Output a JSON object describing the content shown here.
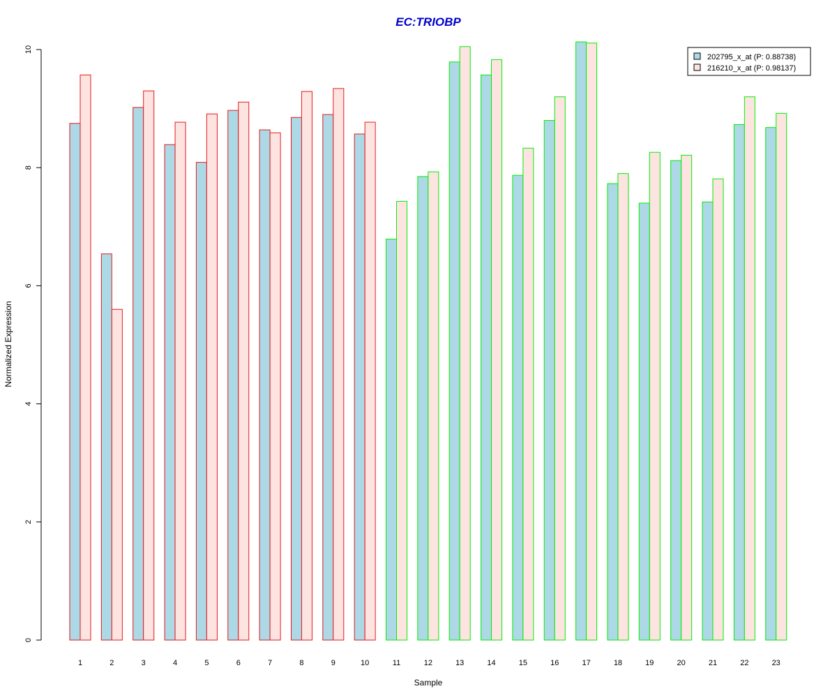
{
  "chart_data": {
    "type": "bar",
    "title": "EC:TRIOBP",
    "xlabel": "Sample",
    "ylabel": "Normalized Expression",
    "ylim": [
      0,
      10
    ],
    "yticks": [
      "0",
      "2",
      "4",
      "6",
      "8",
      "10"
    ],
    "grid": false,
    "legend_position": "top-right",
    "categories": [
      "1",
      "2",
      "3",
      "4",
      "5",
      "6",
      "7",
      "8",
      "9",
      "10",
      "11",
      "12",
      "13",
      "14",
      "15",
      "16",
      "17",
      "18",
      "19",
      "20",
      "21",
      "22",
      "23"
    ],
    "series": [
      {
        "name": "202795_x_at (P: 0.88738)",
        "color": "#add8e6",
        "values": [
          8.75,
          6.54,
          9.02,
          8.39,
          8.09,
          8.97,
          8.64,
          8.85,
          8.9,
          8.57,
          6.79,
          7.85,
          9.79,
          9.57,
          7.87,
          8.8,
          10.13,
          7.73,
          7.4,
          8.12,
          7.42,
          8.73,
          8.68
        ]
      },
      {
        "name": "216210_x_at (P: 0.98137)",
        "color": "#fde4e1",
        "values": [
          9.57,
          5.6,
          9.3,
          8.77,
          8.91,
          9.11,
          8.59,
          9.29,
          9.34,
          8.77,
          7.43,
          7.93,
          10.05,
          9.83,
          8.33,
          9.2,
          10.11,
          7.9,
          8.26,
          8.21,
          7.81,
          9.2,
          8.92
        ]
      }
    ],
    "group_colors": {
      "1-10": "#e31a1c",
      "11-23": "#00ee00"
    },
    "title_color": "#0000cc"
  }
}
